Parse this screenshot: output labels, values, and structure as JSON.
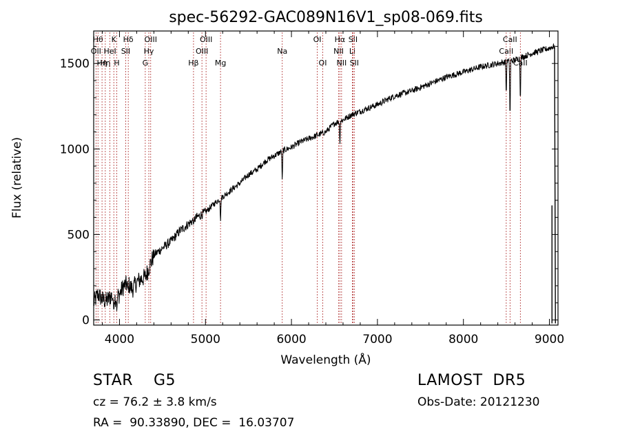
{
  "chart_data": {
    "type": "line",
    "title": "spec-56292-GAC089N16V1_sp08-069.fits",
    "xlabel": "Wavelength (Å)",
    "ylabel": "Flux (relative)",
    "xlim": [
      3700,
      9100
    ],
    "ylim": [
      -30,
      1690
    ],
    "xticks": [
      4000,
      5000,
      6000,
      7000,
      8000,
      9000
    ],
    "yticks": [
      0,
      500,
      1000,
      1500
    ],
    "line_color": "#000000",
    "marker_color": "#b03030",
    "series": [
      {
        "values": [
          [
            3700,
            100
          ],
          [
            3750,
            150
          ],
          [
            3800,
            120
          ],
          [
            3850,
            110
          ],
          [
            3900,
            140
          ],
          [
            3950,
            130
          ],
          [
            4000,
            150
          ],
          [
            4050,
            200
          ],
          [
            4100,
            210
          ],
          [
            4150,
            180
          ],
          [
            4200,
            220
          ],
          [
            4250,
            240
          ],
          [
            4300,
            250
          ],
          [
            4400,
            380
          ],
          [
            4500,
            420
          ],
          [
            4600,
            460
          ],
          [
            4700,
            520
          ],
          [
            4800,
            560
          ],
          [
            4900,
            600
          ],
          [
            5000,
            630
          ],
          [
            5100,
            680
          ],
          [
            5200,
            720
          ],
          [
            5300,
            760
          ],
          [
            5400,
            800
          ],
          [
            5500,
            850
          ],
          [
            5600,
            880
          ],
          [
            5700,
            930
          ],
          [
            5800,
            960
          ],
          [
            5900,
            990
          ],
          [
            6000,
            1010
          ],
          [
            6100,
            1040
          ],
          [
            6200,
            1060
          ],
          [
            6300,
            1080
          ],
          [
            6400,
            1100
          ],
          [
            6500,
            1150
          ],
          [
            6600,
            1170
          ],
          [
            6700,
            1200
          ],
          [
            6800,
            1220
          ],
          [
            6900,
            1240
          ],
          [
            7000,
            1260
          ],
          [
            7200,
            1310
          ],
          [
            7400,
            1340
          ],
          [
            7600,
            1380
          ],
          [
            7800,
            1420
          ],
          [
            8000,
            1450
          ],
          [
            8200,
            1480
          ],
          [
            8400,
            1500
          ],
          [
            8600,
            1520
          ],
          [
            8800,
            1560
          ],
          [
            9000,
            1590
          ],
          [
            9050,
            1600
          ]
        ],
        "dips": [
          [
            3934,
            40
          ],
          [
            3969,
            40
          ],
          [
            4101,
            180
          ],
          [
            4340,
            290
          ],
          [
            4861,
            560
          ],
          [
            5175,
            560
          ],
          [
            5893,
            800
          ],
          [
            6563,
            1010
          ],
          [
            8498,
            1290
          ],
          [
            8542,
            1130
          ],
          [
            8662,
            1240
          ]
        ]
      }
    ],
    "line_markers": [
      {
        "wl": 3750,
        "label": "Hθ",
        "row": 0
      },
      {
        "wl": 3727,
        "label": "OII",
        "row": 1
      },
      {
        "wl": 3797,
        "label": "Hη",
        "row": 2
      },
      {
        "wl": 3835,
        "label": "Hη",
        "row": 2
      },
      {
        "wl": 3889,
        "label": "HeI",
        "row": 1
      },
      {
        "wl": 3934,
        "label": "K",
        "row": 0
      },
      {
        "wl": 3969,
        "label": "H",
        "row": 2
      },
      {
        "wl": 4072,
        "label": "SII",
        "row": 1
      },
      {
        "wl": 4102,
        "label": "Hδ",
        "row": 0
      },
      {
        "wl": 4300,
        "label": "G",
        "row": 2
      },
      {
        "wl": 4341,
        "label": "Hγ",
        "row": 1
      },
      {
        "wl": 4363,
        "label": "OIII",
        "row": 0
      },
      {
        "wl": 4861,
        "label": "Hβ",
        "row": 2
      },
      {
        "wl": 4959,
        "label": "OIII",
        "row": 1
      },
      {
        "wl": 5007,
        "label": "OIII",
        "row": 0
      },
      {
        "wl": 5175,
        "label": "Mg",
        "row": 2
      },
      {
        "wl": 5893,
        "label": "Na",
        "row": 1
      },
      {
        "wl": 6300,
        "label": "OI",
        "row": 0
      },
      {
        "wl": 6364,
        "label": "OI",
        "row": 2
      },
      {
        "wl": 6548,
        "label": "NII",
        "row": 1
      },
      {
        "wl": 6563,
        "label": "Hα",
        "row": 0
      },
      {
        "wl": 6583,
        "label": "NII",
        "row": 2
      },
      {
        "wl": 6708,
        "label": "Li",
        "row": 1
      },
      {
        "wl": 6716,
        "label": "SII",
        "row": 0
      },
      {
        "wl": 6731,
        "label": "SII",
        "row": 2
      },
      {
        "wl": 8498,
        "label": "CaII",
        "row": 1
      },
      {
        "wl": 8542,
        "label": "CaII",
        "row": 0
      },
      {
        "wl": 8662,
        "label": "CaII",
        "row": 2
      }
    ]
  },
  "info": {
    "class_line": "STAR    G5",
    "survey": "LAMOST  DR5",
    "cz_line": "cz = 76.2 ± 3.8 km/s",
    "obs_date": "Obs-Date: 20121230",
    "coords": "RA =  90.33890, DEC =  16.03707"
  }
}
